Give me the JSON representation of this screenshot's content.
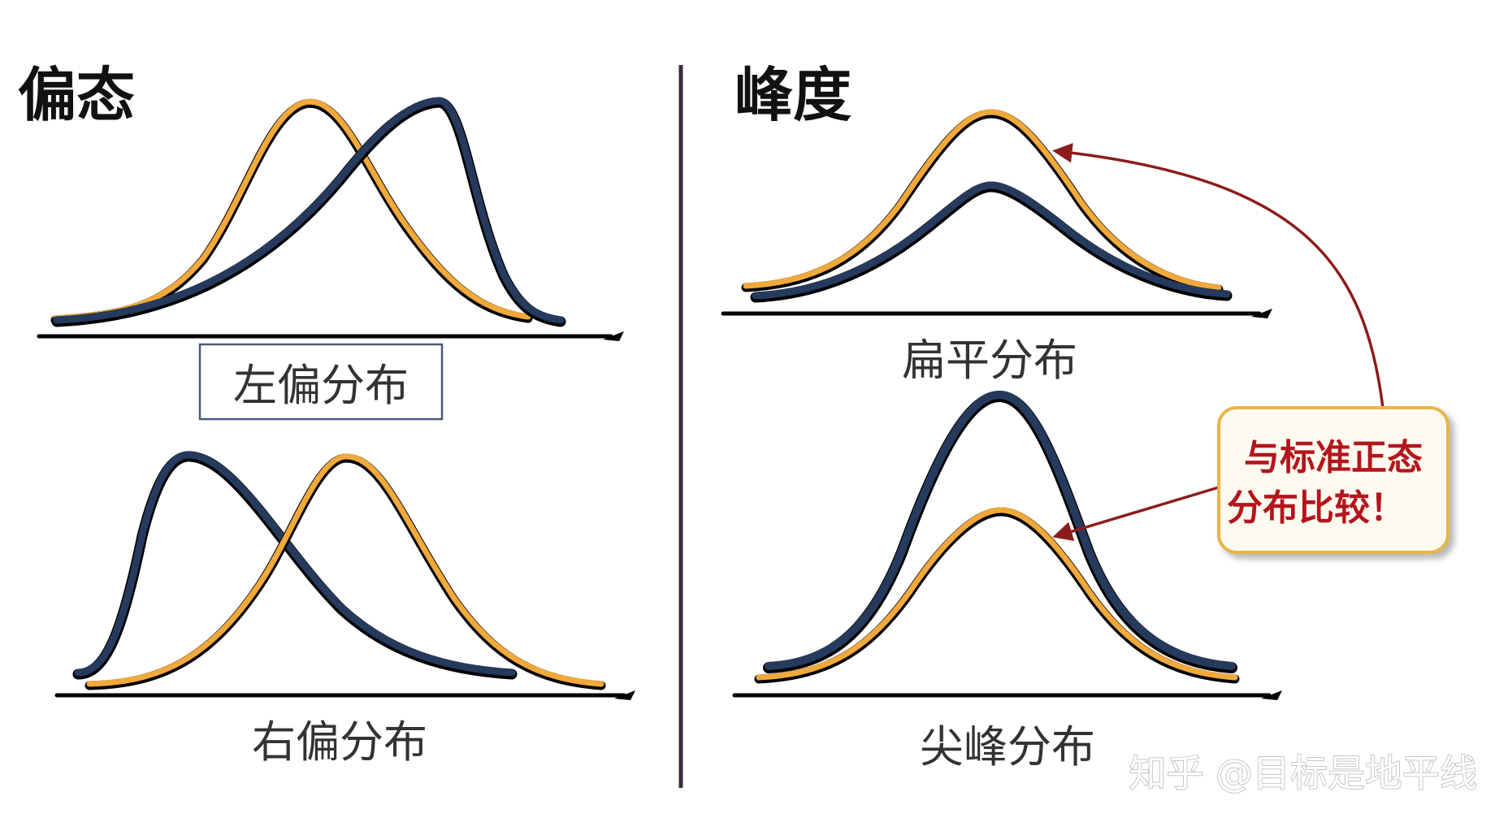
{
  "colors": {
    "orange": "#f0a93a",
    "navy": "#263a5e",
    "divider": "#3a2a3a",
    "callout_border": "#e8b64a",
    "callout_bg": "#fffaf0",
    "arrow": "#8c1c1c",
    "callout_text": "#b3161b"
  },
  "skewness": {
    "heading": "偏态",
    "left_skew_caption": "左偏分布",
    "right_skew_caption": "右偏分布"
  },
  "kurtosis": {
    "heading": "峰度",
    "platykurtic_caption": "扁平分布",
    "leptokurtic_caption": "尖峰分布"
  },
  "callout": {
    "line1": "与标准正态",
    "line2": "分布比较！"
  },
  "watermark": "知乎 @目标是地平线"
}
